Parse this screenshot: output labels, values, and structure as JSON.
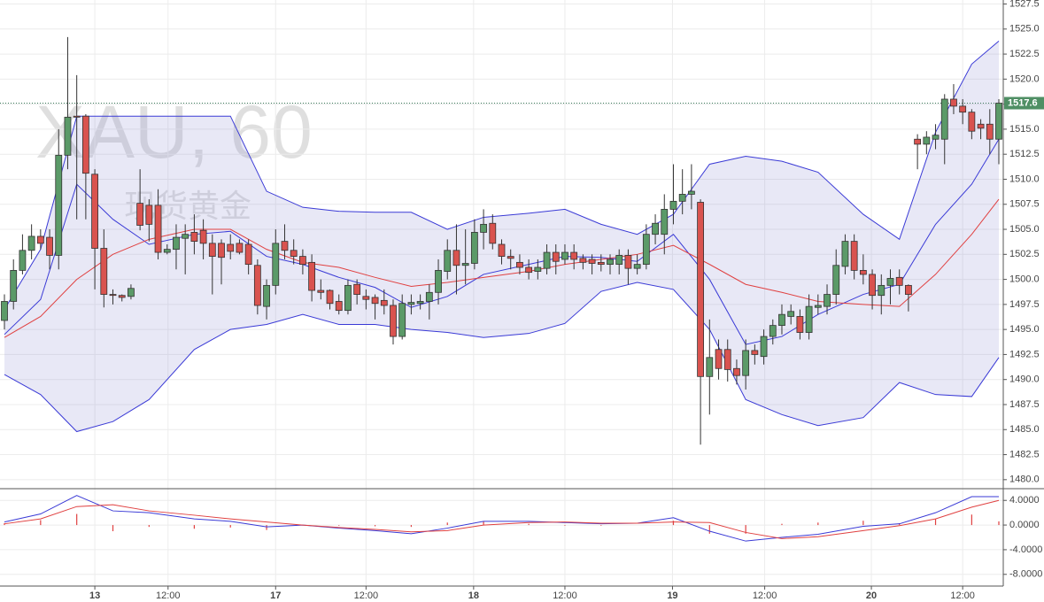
{
  "chart_data": {
    "type": "candlestick",
    "title": "XAU, 60",
    "subtitle": "现货黄金",
    "last_price": 1517.6,
    "up_color": "#5b9a68",
    "down_color": "#d9534f",
    "open": [
      1495.9,
      1497.8,
      1500.9,
      1502.9,
      1504.3,
      1504.2,
      1502.4,
      1512.4,
      1516.3,
      1516.3,
      1510.5,
      1503.1,
      1498.5,
      1498.4,
      1498.3,
      1507.6,
      1507.4,
      1507.4,
      1502.7,
      1503,
      1504.1,
      1504.7,
      1504.9,
      1503.6,
      1503.6,
      1503.5,
      1503.6,
      1503.5,
      1501.4,
      1497.3,
      1499.4,
      1503.8,
      1502.9,
      1502.3,
      1501.7,
      1498.9,
      1498.9,
      1497.8,
      1496.9,
      1499.5,
      1498.3,
      1498.2,
      1497.9,
      1497.4,
      1494.3,
      1497.5,
      1497.6,
      1497.8,
      1498.7,
      1500.8,
      1502.9,
      1501.4,
      1501.6,
      1504.7,
      1505.6,
      1503.5,
      1502.3,
      1501.7,
      1501.2,
      1500.8,
      1501.1,
      1502.7,
      1502,
      1502.7,
      1502.1,
      1502,
      1501.7,
      1501.5,
      1501.5,
      1502.4,
      1501.1,
      1501.5,
      1504.5,
      1504.5,
      1507,
      1507.8,
      1508.5,
      1507.7,
      1490.3,
      1493,
      1493,
      1491.1,
      1490.4,
      1492.9,
      1492.3,
      1494.3,
      1495.4,
      1496.3,
      1496.3,
      1494.7,
      1497.2,
      1497.3,
      1498.5,
      1501.3,
      1503.8,
      1500.9,
      1500.5,
      1498.4,
      1499.4,
      1500.2,
      1499.4,
      1514,
      1513.5,
      1514,
      1514,
      1518,
      1517.3,
      1516.7,
      1515.5,
      1515.5,
      1514
    ],
    "high": [
      1498.5,
      1502,
      1504.5,
      1505.5,
      1505,
      1505,
      1515,
      1524.2,
      1520.4,
      1516.5,
      1511,
      1505,
      1499,
      1498.5,
      1499.5,
      1511,
      1508,
      1509,
      1503.5,
      1505.5,
      1505.5,
      1506.5,
      1506,
      1504.5,
      1504,
      1504.5,
      1504,
      1504,
      1502,
      1500,
      1505,
      1505.5,
      1504,
      1503,
      1502.5,
      1500,
      1499,
      1498.5,
      1500,
      1500,
      1499,
      1498.5,
      1499,
      1498,
      1498.5,
      1498.5,
      1498.5,
      1499.5,
      1502,
      1504,
      1505.5,
      1505,
      1506,
      1507,
      1506.5,
      1504,
      1503,
      1502.5,
      1502,
      1502,
      1503.5,
      1503.5,
      1503.5,
      1503.5,
      1502.5,
      1502.5,
      1502.5,
      1502.5,
      1503,
      1503,
      1502.5,
      1505.5,
      1506.5,
      1508.5,
      1511.5,
      1511,
      1511.5,
      1508,
      1496,
      1494,
      1494,
      1492,
      1494,
      1493.5,
      1495,
      1496,
      1497.5,
      1497.5,
      1497,
      1498.5,
      1498.5,
      1499.5,
      1503,
      1504.5,
      1504.5,
      1502.5,
      1501,
      1500.5,
      1501,
      1501,
      1499.5,
      1514.5,
      1514.8,
      1515.5,
      1518.5,
      1519.5,
      1518,
      1517,
      1516,
      1517,
      1518
    ],
    "low": [
      1495,
      1497,
      1500.5,
      1502,
      1503,
      1501,
      1501,
      1511,
      1506,
      1506,
      1499,
      1497.2,
      1497.5,
      1497.8,
      1498,
      1504.9,
      1503.8,
      1502,
      1502.5,
      1501,
      1500.5,
      1502.5,
      1502,
      1498.5,
      1499.5,
      1502,
      1502.5,
      1500.5,
      1496.5,
      1496,
      1498.5,
      1502,
      1501.5,
      1500.5,
      1497.8,
      1498,
      1497,
      1496.5,
      1496.5,
      1497.5,
      1497,
      1496,
      1496.5,
      1493.5,
      1494,
      1496.5,
      1497,
      1496,
      1497.5,
      1500,
      1498.5,
      1499.5,
      1501,
      1503,
      1503,
      1501.5,
      1501,
      1500.5,
      1500,
      1500,
      1500.5,
      1500.5,
      1501.5,
      1501,
      1501,
      1500.5,
      1500.8,
      1500.5,
      1500.5,
      1499.5,
      1500.5,
      1501,
      1503.5,
      1502.5,
      1505.5,
      1506.5,
      1507,
      1483.5,
      1486.5,
      1490,
      1489.8,
      1489.5,
      1489,
      1491.5,
      1491.5,
      1493.5,
      1494.5,
      1495.5,
      1494,
      1494,
      1496.5,
      1496.5,
      1497.5,
      1500.5,
      1500,
      1499.5,
      1497,
      1496.5,
      1497.5,
      1498.5,
      1496.8,
      1511,
      1512.5,
      1513,
      1511.5,
      1516.5,
      1515.5,
      1514,
      1514,
      1512.5,
      1511.5
    ],
    "close": [
      1497.8,
      1500.9,
      1502.9,
      1504.3,
      1503.6,
      1502.4,
      1512.4,
      1516.2,
      1516.2,
      1510.6,
      1503.1,
      1498.5,
      1498.4,
      1498.2,
      1499.1,
      1505.4,
      1505.5,
      1502.7,
      1503,
      1504.2,
      1504.5,
      1503.8,
      1503.6,
      1502.3,
      1502.2,
      1502.8,
      1502.7,
      1501.5,
      1497.4,
      1499.4,
      1503.6,
      1502.9,
      1502.3,
      1501.5,
      1498.9,
      1498.7,
      1497.6,
      1496.9,
      1499.4,
      1498.5,
      1498,
      1497.6,
      1497.4,
      1494.3,
      1497.6,
      1497.7,
      1497.8,
      1498.7,
      1500.9,
      1502.9,
      1501.4,
      1501.6,
      1504.7,
      1505.5,
      1503.6,
      1502.3,
      1502.1,
      1501.2,
      1500.7,
      1501.2,
      1502.7,
      1501.8,
      1502.7,
      1502,
      1501.7,
      1501.6,
      1501.5,
      1502,
      1502.4,
      1501.1,
      1501.5,
      1504.5,
      1505.6,
      1507,
      1507.8,
      1508.5,
      1508.8,
      1490.3,
      1492.2,
      1491.1,
      1491,
      1490.4,
      1492.9,
      1492.5,
      1494.3,
      1495.4,
      1496.5,
      1496.8,
      1494.7,
      1497.3,
      1497.4,
      1498.5,
      1501.4,
      1503.8,
      1500.9,
      1500.5,
      1498.4,
      1499.4,
      1500.1,
      1499.4,
      1498.5,
      1513.5,
      1514.2,
      1514.4,
      1518,
      1517.3,
      1516.7,
      1514.8,
      1515.1,
      1514,
      1517.6
    ],
    "indicator_x": [
      0,
      4,
      8,
      12,
      16,
      21,
      25,
      29,
      33,
      37,
      41,
      45,
      49,
      53,
      58,
      62,
      66,
      70,
      74,
      78,
      82,
      86,
      90,
      95,
      99,
      103,
      107,
      110
    ],
    "bands": [
      {
        "color": "#3a3ad6",
        "values": [
          1497,
          1503,
          1516.3,
          1516.3,
          1516.3,
          1516.3,
          1516.3,
          1508.8,
          1507.2,
          1506.8,
          1506.7,
          1506.7,
          1505,
          1506.2,
          1506.6,
          1507,
          1505.5,
          1504.5,
          1506.5,
          1511.5,
          1512.3,
          1511.8,
          1510.7,
          1506.5,
          1504,
          1514.7,
          1521.5,
          1523.8
        ]
      },
      {
        "color": "#3a3ad6",
        "values": [
          1494.5,
          1498,
          1509.5,
          1506,
          1503.5,
          1504.5,
          1504.8,
          1502.3,
          1501.5,
          1500.2,
          1499.2,
          1497.2,
          1498.3,
          1500.5,
          1501.5,
          1502.3,
          1502.2,
          1501.8,
          1504.5,
          1500,
          1493.5,
          1494.3,
          1496.5,
          1498.5,
          1499.5,
          1505.5,
          1509.5,
          1514
        ]
      },
      {
        "color": "#3a3ad6",
        "values": [
          1490.5,
          1488.5,
          1484.8,
          1485.8,
          1488,
          1493,
          1495,
          1495.5,
          1496.5,
          1495.5,
          1495.5,
          1495,
          1494.7,
          1494.2,
          1494.6,
          1495.6,
          1498.8,
          1499.7,
          1499,
          1495,
          1488,
          1486.5,
          1485.4,
          1486.2,
          1489.7,
          1488.5,
          1488.3,
          1492.2
        ]
      }
    ],
    "ma": {
      "color": "#e04040",
      "values": [
        1494.2,
        1496.3,
        1500,
        1502.5,
        1504,
        1505,
        1505,
        1503,
        1501.7,
        1501.2,
        1500.2,
        1499.3,
        1499.7,
        1500.2,
        1500.8,
        1501.5,
        1502,
        1502.5,
        1503.4,
        1501.5,
        1499.5,
        1498.7,
        1497.8,
        1497.5,
        1497.3,
        1500.5,
        1504.5,
        1508
      ]
    },
    "macd": {
      "color": "#3a3ad6",
      "values": [
        0.5,
        1.8,
        4.8,
        2.3,
        2.0,
        1.0,
        0.6,
        -0.3,
        0.0,
        -0.5,
        -0.9,
        -1.4,
        -0.5,
        0.6,
        0.6,
        0.4,
        0.2,
        0.3,
        1.2,
        -1.0,
        -2.6,
        -2.0,
        -1.5,
        -0.2,
        0.2,
        2.0,
        4.6,
        4.6
      ]
    },
    "signal": {
      "color": "#e04040",
      "values": [
        0.2,
        1.0,
        3.0,
        3.3,
        2.3,
        1.6,
        1.0,
        0.5,
        0.0,
        -0.4,
        -0.7,
        -1.1,
        -0.9,
        0.0,
        0.4,
        0.5,
        0.3,
        0.3,
        0.5,
        0.4,
        -1.2,
        -2.2,
        -1.9,
        -0.9,
        -0.1,
        1.0,
        2.9,
        4.0
      ]
    },
    "histogram": {
      "color": "#e04040",
      "values": [
        0.3,
        0.8,
        1.8,
        -1.0,
        -0.3,
        -0.6,
        -0.4,
        -0.8,
        0.0,
        -0.1,
        -0.2,
        -0.3,
        0.4,
        0.6,
        0.2,
        -0.1,
        -0.1,
        0.0,
        0.7,
        -1.4,
        -1.4,
        0.2,
        0.4,
        0.7,
        0.3,
        1.0,
        1.7,
        0.6
      ]
    },
    "xlim": [
      -0.5,
      110.5
    ],
    "xticks": [
      {
        "value": 10.0,
        "label": "13"
      },
      {
        "value": 18.1,
        "label": "12:00"
      },
      {
        "value": 30.0,
        "label": "17"
      },
      {
        "value": 40.0,
        "label": "12:00"
      },
      {
        "value": 51.9,
        "label": "18"
      },
      {
        "value": 62.0,
        "label": "12:00"
      },
      {
        "value": 73.9,
        "label": "19"
      },
      {
        "value": 84.1,
        "label": "12:00"
      },
      {
        "value": 95.9,
        "label": "20"
      },
      {
        "value": 106.0,
        "label": "12:00"
      }
    ],
    "ylim": [
      1479.1,
      1527.9
    ],
    "yticks": [
      {
        "value": 1480,
        "label": "1480.0"
      },
      1482.5,
      {
        "value": 1485,
        "label": "1485.0"
      },
      1487.5,
      {
        "value": 1490,
        "label": "1490.0"
      },
      1492.5,
      {
        "value": 1495,
        "label": "1495.0"
      },
      1497.5,
      {
        "value": 1500,
        "label": "1500.0"
      },
      1502.5,
      {
        "value": 1505,
        "label": "1505.0"
      },
      1507.5,
      {
        "value": 1510,
        "label": "1510.0"
      },
      1512.5,
      {
        "value": 1515,
        "label": "1515.0"
      },
      1517.5,
      {
        "value": 1520,
        "label": "1520.0"
      },
      1522.5,
      {
        "value": 1525,
        "label": "1525.0"
      },
      1527.5
    ],
    "y2lim": [
      -9.9,
      5.9
    ],
    "y2ticks": [
      {
        "value": 4,
        "label": "4.0000"
      },
      {
        "value": 0,
        "label": "0.0000"
      },
      {
        "value": -4,
        "label": "-4.0000"
      },
      {
        "value": -8,
        "label": "-8.0000"
      }
    ],
    "grid": true
  }
}
